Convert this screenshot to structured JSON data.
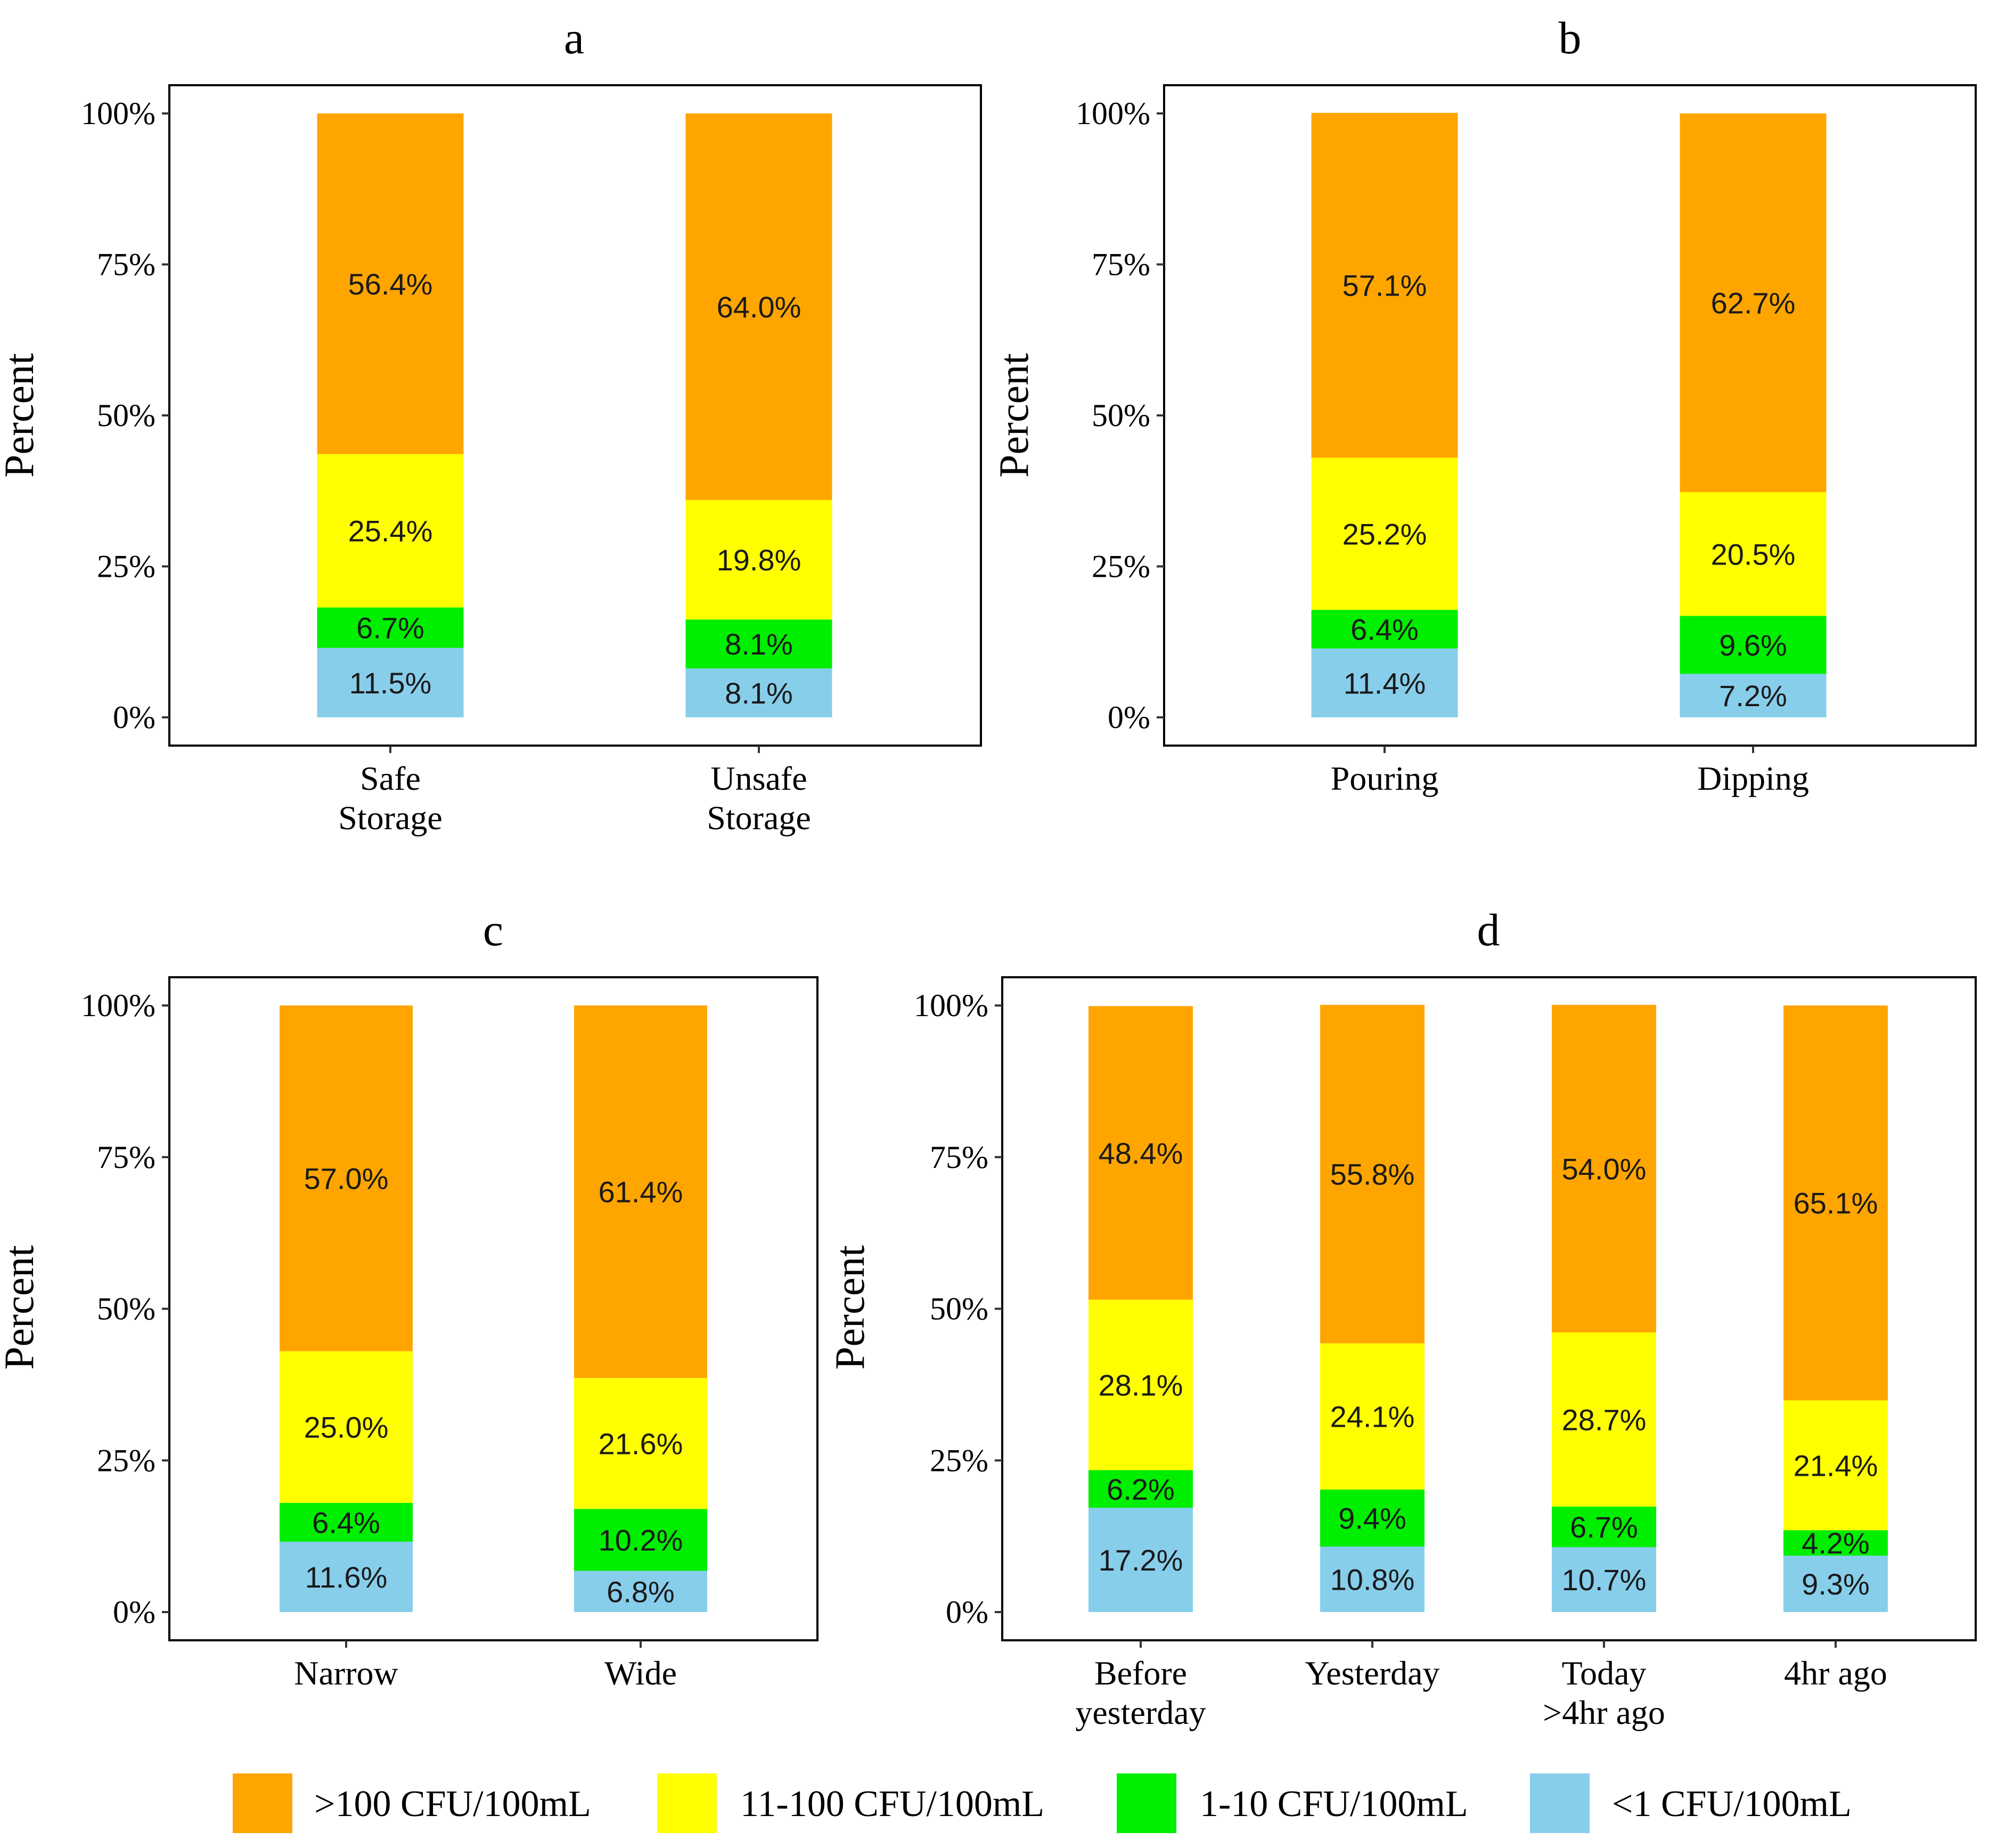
{
  "chart_data": [
    {
      "type": "bar",
      "title": "a",
      "ylabel": "Percent",
      "ylim": [
        0,
        100
      ],
      "yticks": [
        "0%",
        "25%",
        "50%",
        "75%",
        "100%"
      ],
      "categories": [
        "Safe\nStorage",
        "Unsafe\nStorage"
      ],
      "series": [
        {
          "name": "<1 CFU/100mL",
          "values": [
            11.5,
            8.1
          ]
        },
        {
          "name": "1-10 CFU/100mL",
          "values": [
            6.7,
            8.1
          ]
        },
        {
          "name": "11-100 CFU/100mL",
          "values": [
            25.4,
            19.8
          ]
        },
        {
          "name": ">100 CFU/100mL",
          "values": [
            56.4,
            64.0
          ]
        }
      ],
      "data_labels": [
        [
          "11.5%",
          "8.1%"
        ],
        [
          "6.7%",
          "8.1%"
        ],
        [
          "25.4%",
          "19.8%"
        ],
        [
          "56.4%",
          "64.0%"
        ]
      ]
    },
    {
      "type": "bar",
      "title": "b",
      "ylabel": "Percent",
      "ylim": [
        0,
        100
      ],
      "yticks": [
        "0%",
        "25%",
        "50%",
        "75%",
        "100%"
      ],
      "categories": [
        "Pouring",
        "Dipping"
      ],
      "series": [
        {
          "name": "<1 CFU/100mL",
          "values": [
            11.4,
            7.2
          ]
        },
        {
          "name": "1-10 CFU/100mL",
          "values": [
            6.4,
            9.6
          ]
        },
        {
          "name": "11-100 CFU/100mL",
          "values": [
            25.2,
            20.5
          ]
        },
        {
          "name": ">100 CFU/100mL",
          "values": [
            57.1,
            62.7
          ]
        }
      ],
      "data_labels": [
        [
          "11.4%",
          "7.2%"
        ],
        [
          "6.4%",
          "9.6%"
        ],
        [
          "25.2%",
          "20.5%"
        ],
        [
          "57.1%",
          "62.7%"
        ]
      ]
    },
    {
      "type": "bar",
      "title": "c",
      "ylabel": "Percent",
      "ylim": [
        0,
        100
      ],
      "yticks": [
        "0%",
        "25%",
        "50%",
        "75%",
        "100%"
      ],
      "categories": [
        "Narrow",
        "Wide"
      ],
      "series": [
        {
          "name": "<1 CFU/100mL",
          "values": [
            11.6,
            6.8
          ]
        },
        {
          "name": "1-10 CFU/100mL",
          "values": [
            6.4,
            10.2
          ]
        },
        {
          "name": "11-100 CFU/100mL",
          "values": [
            25.0,
            21.6
          ]
        },
        {
          "name": ">100 CFU/100mL",
          "values": [
            57.0,
            61.4
          ]
        }
      ],
      "data_labels": [
        [
          "11.6%",
          "6.8%"
        ],
        [
          "6.4%",
          "10.2%"
        ],
        [
          "25.0%",
          "21.6%"
        ],
        [
          "57.0%",
          "61.4%"
        ]
      ]
    },
    {
      "type": "bar",
      "title": "d",
      "ylabel": "Percent",
      "ylim": [
        0,
        100
      ],
      "yticks": [
        "0%",
        "25%",
        "50%",
        "75%",
        "100%"
      ],
      "categories": [
        "Before\nyesterday",
        "Yesterday",
        "Today\n>4hr ago",
        "4hr ago"
      ],
      "series": [
        {
          "name": "<1 CFU/100mL",
          "values": [
            17.2,
            10.8,
            10.7,
            9.3
          ]
        },
        {
          "name": "1-10 CFU/100mL",
          "values": [
            6.2,
            9.4,
            6.7,
            4.2
          ]
        },
        {
          "name": "11-100 CFU/100mL",
          "values": [
            28.1,
            24.1,
            28.7,
            21.4
          ]
        },
        {
          "name": ">100 CFU/100mL",
          "values": [
            48.4,
            55.8,
            54.0,
            65.1
          ]
        }
      ],
      "data_labels": [
        [
          "17.2%",
          "10.8%",
          "10.7%",
          "9.3%"
        ],
        [
          "6.2%",
          "9.4%",
          "6.7%",
          "4.2%"
        ],
        [
          "28.1%",
          "24.1%",
          "28.7%",
          "21.4%"
        ],
        [
          "48.4%",
          "55.8%",
          "54.0%",
          "65.1%"
        ]
      ]
    }
  ],
  "legend": {
    "position": "bottom",
    "items": [
      {
        "label": ">100 CFU/100mL",
        "color": "#FFA500"
      },
      {
        "label": "11-100 CFU/100mL",
        "color": "#FFFF00"
      },
      {
        "label": "1-10 CFU/100mL",
        "color": "#00EE00"
      },
      {
        "label": "<1 CFU/100mL",
        "color": "#87CEEB"
      }
    ]
  },
  "series_colors": [
    "#87CEEB",
    "#00EE00",
    "#FFFF00",
    "#FFA500"
  ]
}
